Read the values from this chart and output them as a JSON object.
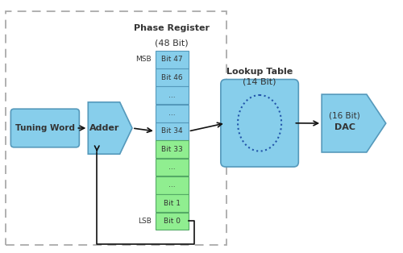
{
  "bg_color": "#ffffff",
  "blue_color": "#87ceeb",
  "green_color": "#90ee90",
  "edge_blue": "#5599bb",
  "edge_green": "#55aa66",
  "font_color": "#333333",
  "arrow_color": "#111111",
  "dashed_color": "#aaaaaa",
  "tuning_word_label": "Tuning Word",
  "adder_label": "Adder",
  "phase_register_line1": "Phase Register",
  "phase_register_line2": "(48 Bit)",
  "lookup_table_line1": "Lookup Table",
  "lookup_table_line2": "(14 Bit)",
  "dac_line1": "DAC",
  "dac_line2": "(16 Bit)",
  "msb_label": "MSB",
  "lsb_label": "LSB",
  "blue_bits": [
    "Bit 47",
    "Bit 46",
    "...",
    "...",
    "Bit 34"
  ],
  "green_bits": [
    "Bit 33",
    "...",
    "...",
    "Bit 1",
    "Bit 0"
  ]
}
